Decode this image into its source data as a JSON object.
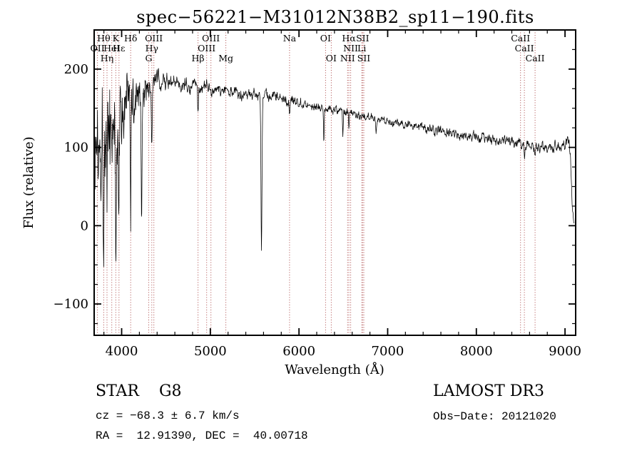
{
  "title": "spec−56221−M31012N38B2_sp11−190.fits",
  "chart_data": {
    "type": "line",
    "title": "spec−56221−M31012N38B2_sp11−190.fits",
    "xlabel": "Wavelength (Å)",
    "ylabel": "Flux (relative)",
    "xlim": [
      3690,
      9120
    ],
    "ylim": [
      -140,
      250
    ],
    "xticks": [
      4000,
      5000,
      6000,
      7000,
      8000,
      9000
    ],
    "yticks": [
      -100,
      0,
      100,
      200
    ],
    "x_minor_step": 200,
    "y_minor_step": 25,
    "grid": false,
    "legend": "none",
    "wavelength_range": [
      3700,
      9100
    ],
    "marker_line_color": "#aa4444",
    "marker_label_color": "#8b2020",
    "series": [
      {
        "name": "flux",
        "color": "#000000",
        "style": "noisy-line",
        "continuum_points": [
          [
            3700,
            100
          ],
          [
            3750,
            118
          ],
          [
            3800,
            125
          ],
          [
            3900,
            132
          ],
          [
            4000,
            150
          ],
          [
            4100,
            160
          ],
          [
            4200,
            170
          ],
          [
            4300,
            180
          ],
          [
            4400,
            186
          ],
          [
            4600,
            182
          ],
          [
            4800,
            178
          ],
          [
            5000,
            174
          ],
          [
            5200,
            172
          ],
          [
            5500,
            168
          ],
          [
            5800,
            163
          ],
          [
            6000,
            158
          ],
          [
            6200,
            153
          ],
          [
            6500,
            146
          ],
          [
            6800,
            139
          ],
          [
            7000,
            134
          ],
          [
            7300,
            127
          ],
          [
            7600,
            121
          ],
          [
            8000,
            114
          ],
          [
            8400,
            107
          ],
          [
            8700,
            101
          ],
          [
            8900,
            99
          ],
          [
            8990,
            104
          ],
          [
            9030,
            113
          ],
          [
            9060,
            95
          ],
          [
            9085,
            15
          ],
          [
            9100,
            2
          ]
        ],
        "noise_amplitude_points": [
          [
            3700,
            120
          ],
          [
            3800,
            115
          ],
          [
            3900,
            112
          ],
          [
            4000,
            85
          ],
          [
            4100,
            62
          ],
          [
            4200,
            42
          ],
          [
            4300,
            26
          ],
          [
            4500,
            16
          ],
          [
            4800,
            13
          ],
          [
            5200,
            11
          ],
          [
            5600,
            10
          ],
          [
            6000,
            9
          ],
          [
            6500,
            8
          ],
          [
            7000,
            8
          ],
          [
            7600,
            9
          ],
          [
            8200,
            10
          ],
          [
            8700,
            11
          ],
          [
            9000,
            12
          ],
          [
            9100,
            8
          ]
        ],
        "absorption_features": [
          {
            "x": 3797,
            "depth": 90,
            "width": 5
          },
          {
            "x": 3835,
            "depth": 110,
            "width": 5
          },
          {
            "x": 3934,
            "depth": 160,
            "width": 6
          },
          {
            "x": 3969,
            "depth": 120,
            "width": 5
          },
          {
            "x": 4102,
            "depth": 140,
            "width": 5
          },
          {
            "x": 4226,
            "depth": 170,
            "width": 5
          },
          {
            "x": 4340,
            "depth": 80,
            "width": 5
          },
          {
            "x": 4861,
            "depth": 26,
            "width": 5
          },
          {
            "x": 5577,
            "depth": 192,
            "width": 6
          },
          {
            "x": 5893,
            "depth": 20,
            "width": 5
          },
          {
            "x": 6280,
            "depth": 42,
            "width": 4
          },
          {
            "x": 6495,
            "depth": 34,
            "width": 4
          },
          {
            "x": 6563,
            "depth": 22,
            "width": 4
          },
          {
            "x": 6870,
            "depth": 16,
            "width": 6
          },
          {
            "x": 8542,
            "depth": 16,
            "width": 5
          },
          {
            "x": 8662,
            "depth": 14,
            "width": 5
          }
        ]
      }
    ],
    "line_markers": [
      {
        "label": "Hθ",
        "wavelength": 3798,
        "row": 0
      },
      {
        "label": "K",
        "wavelength": 3934,
        "row": 0
      },
      {
        "label": "Hδ",
        "wavelength": 4102,
        "row": 0
      },
      {
        "label": "OIII",
        "wavelength": 4363,
        "row": 0
      },
      {
        "label": "OIII",
        "wavelength": 5007,
        "row": 0
      },
      {
        "label": "Na",
        "wavelength": 5893,
        "row": 0
      },
      {
        "label": "OI",
        "wavelength": 6300,
        "row": 0
      },
      {
        "label": "Hα",
        "wavelength": 6563,
        "row": 0
      },
      {
        "label": "SII",
        "wavelength": 6717,
        "row": 0
      },
      {
        "label": "CaII",
        "wavelength": 8498,
        "row": 0
      },
      {
        "label": "OII",
        "wavelength": 3727,
        "row": 1
      },
      {
        "label": "HeI",
        "wavelength": 3889,
        "row": 1
      },
      {
        "label": "Hε",
        "wavelength": 3970,
        "row": 1
      },
      {
        "label": "Hγ",
        "wavelength": 4340,
        "row": 1
      },
      {
        "label": "OIII",
        "wavelength": 4959,
        "row": 1
      },
      {
        "label": "NII",
        "wavelength": 6583,
        "row": 1
      },
      {
        "label": "Li",
        "wavelength": 6708,
        "row": 1
      },
      {
        "label": "CaII",
        "wavelength": 8542,
        "row": 1
      },
      {
        "label": "Hη",
        "wavelength": 3835,
        "row": 2
      },
      {
        "label": "G",
        "wavelength": 4305,
        "row": 2
      },
      {
        "label": "Hβ",
        "wavelength": 4861,
        "row": 2
      },
      {
        "label": "Mg",
        "wavelength": 5175,
        "row": 2
      },
      {
        "label": "OI",
        "wavelength": 6364,
        "row": 2
      },
      {
        "label": "NII",
        "wavelength": 6548,
        "row": 2
      },
      {
        "label": "SII",
        "wavelength": 6731,
        "row": 2
      },
      {
        "label": "CaII",
        "wavelength": 8662,
        "row": 2
      }
    ]
  },
  "annotations": {
    "class_label": "STAR    G8",
    "survey": "LAMOST DR3",
    "cz": "cz = −68.3 ± 6.7 km/s",
    "obs_date": "Obs−Date: 20121020",
    "radec": "RA =  12.91390, DEC =  40.00718"
  }
}
